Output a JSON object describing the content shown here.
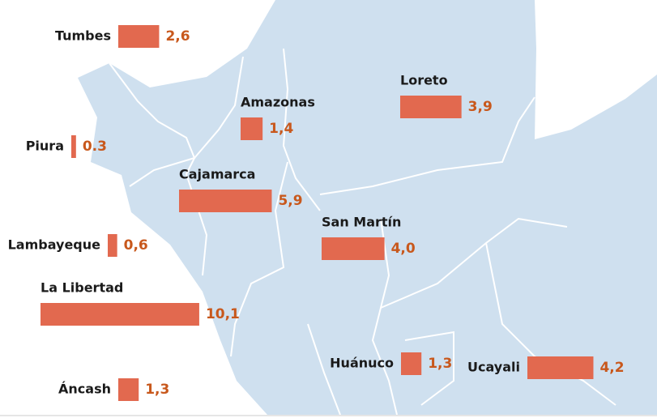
{
  "map_data": {
    "color": "#e2694f",
    "regions": [
      {
        "name": "Tumbes",
        "value": 2.6,
        "value_label": "2,6"
      },
      {
        "name": "Piura",
        "value": 0.3,
        "value_label": "0.3"
      },
      {
        "name": "Lambayeque",
        "value": 0.6,
        "value_label": "0,6"
      },
      {
        "name": "La Libertad",
        "value": 10.1,
        "value_label": "10,1"
      },
      {
        "name": "Áncash",
        "value": 1.3,
        "value_label": "1,3"
      },
      {
        "name": "Cajamarca",
        "value": 5.9,
        "value_label": "5,9"
      },
      {
        "name": "Amazonas",
        "value": 1.4,
        "value_label": "1,4"
      },
      {
        "name": "Loreto",
        "value": 3.9,
        "value_label": "3,9"
      },
      {
        "name": "San Martín",
        "value": 4.0,
        "value_label": "4,0"
      },
      {
        "name": "Huánuco",
        "value": 1.3,
        "value_label": "1,3"
      },
      {
        "name": "Ucayali",
        "value": 4.2,
        "value_label": "4,2"
      }
    ]
  }
}
